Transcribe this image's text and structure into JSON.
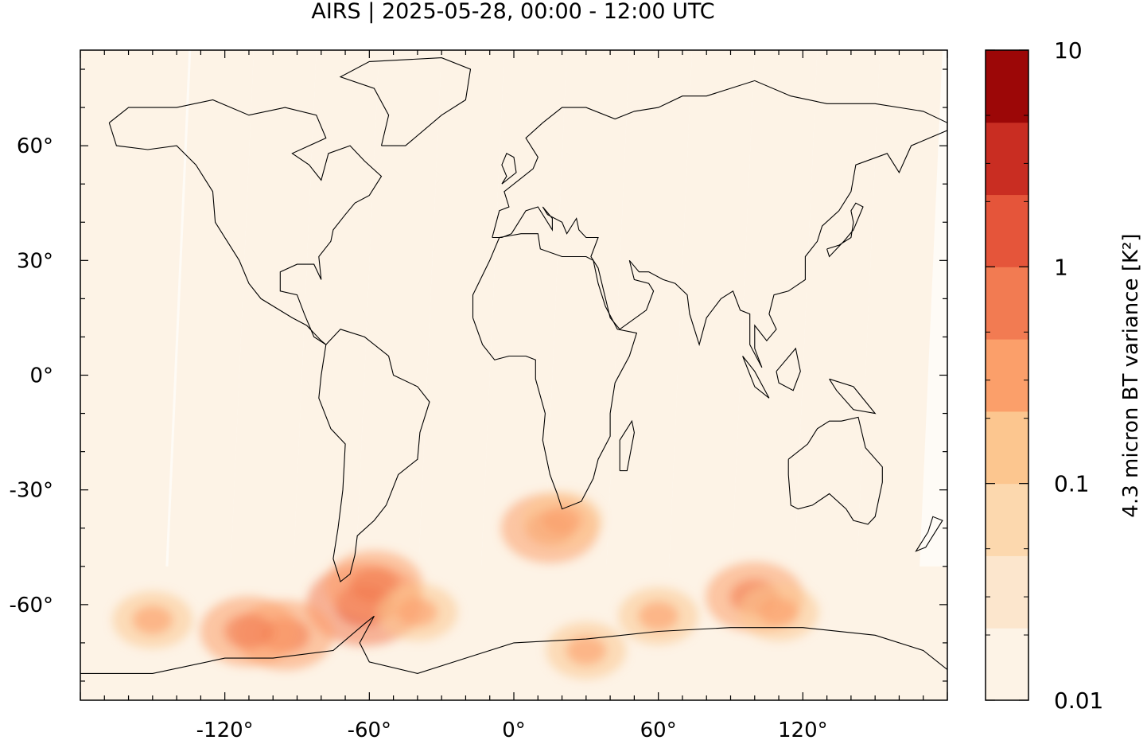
{
  "title": "AIRS | 2025-05-28, 00:00 - 12:00 UTC",
  "map": {
    "lon_range": [
      -180,
      180
    ],
    "lat_range": [
      -85,
      85
    ],
    "lon_ticks": [
      {
        "value": -120,
        "label": "-120°"
      },
      {
        "value": -60,
        "label": "-60°"
      },
      {
        "value": 0,
        "label": "0°"
      },
      {
        "value": 60,
        "label": "60°"
      },
      {
        "value": 120,
        "label": "120°"
      }
    ],
    "lat_ticks": [
      {
        "value": 60,
        "label": "60°"
      },
      {
        "value": 30,
        "label": "30°"
      },
      {
        "value": 0,
        "label": "0°"
      },
      {
        "value": -30,
        "label": "-30°"
      },
      {
        "value": -60,
        "label": "-60°"
      }
    ],
    "swath_color": "#fdf3e6",
    "hotspots": [
      {
        "lon": -62,
        "lat": -60,
        "level": 4
      },
      {
        "lon": -58,
        "lat": -55,
        "level": 3
      },
      {
        "lon": -95,
        "lat": -68,
        "level": 3
      },
      {
        "lon": -110,
        "lat": -67,
        "level": 3
      },
      {
        "lon": 15,
        "lat": -40,
        "level": 3
      },
      {
        "lon": 20,
        "lat": -38,
        "level": 2
      },
      {
        "lon": 100,
        "lat": -58,
        "level": 3
      },
      {
        "lon": 110,
        "lat": -62,
        "level": 2
      },
      {
        "lon": -150,
        "lat": -64,
        "level": 2
      },
      {
        "lon": -40,
        "lat": -62,
        "level": 2
      },
      {
        "lon": 60,
        "lat": -63,
        "level": 2
      },
      {
        "lon": 30,
        "lat": -72,
        "level": 2
      }
    ]
  },
  "colorbar": {
    "label": "4.3 micron BT variance [K²]",
    "tick_labels": [
      {
        "value": 10,
        "label": "10"
      },
      {
        "value": 1,
        "label": "1"
      },
      {
        "value": 0.1,
        "label": "0.1"
      },
      {
        "value": 0.01,
        "label": "0.01"
      }
    ],
    "colors": [
      "#fdf3e6",
      "#fce6cd",
      "#fcd8ae",
      "#fcc68f",
      "#fb9f6a",
      "#f27b52",
      "#e5553a",
      "#c92d22",
      "#9c0707"
    ]
  }
}
